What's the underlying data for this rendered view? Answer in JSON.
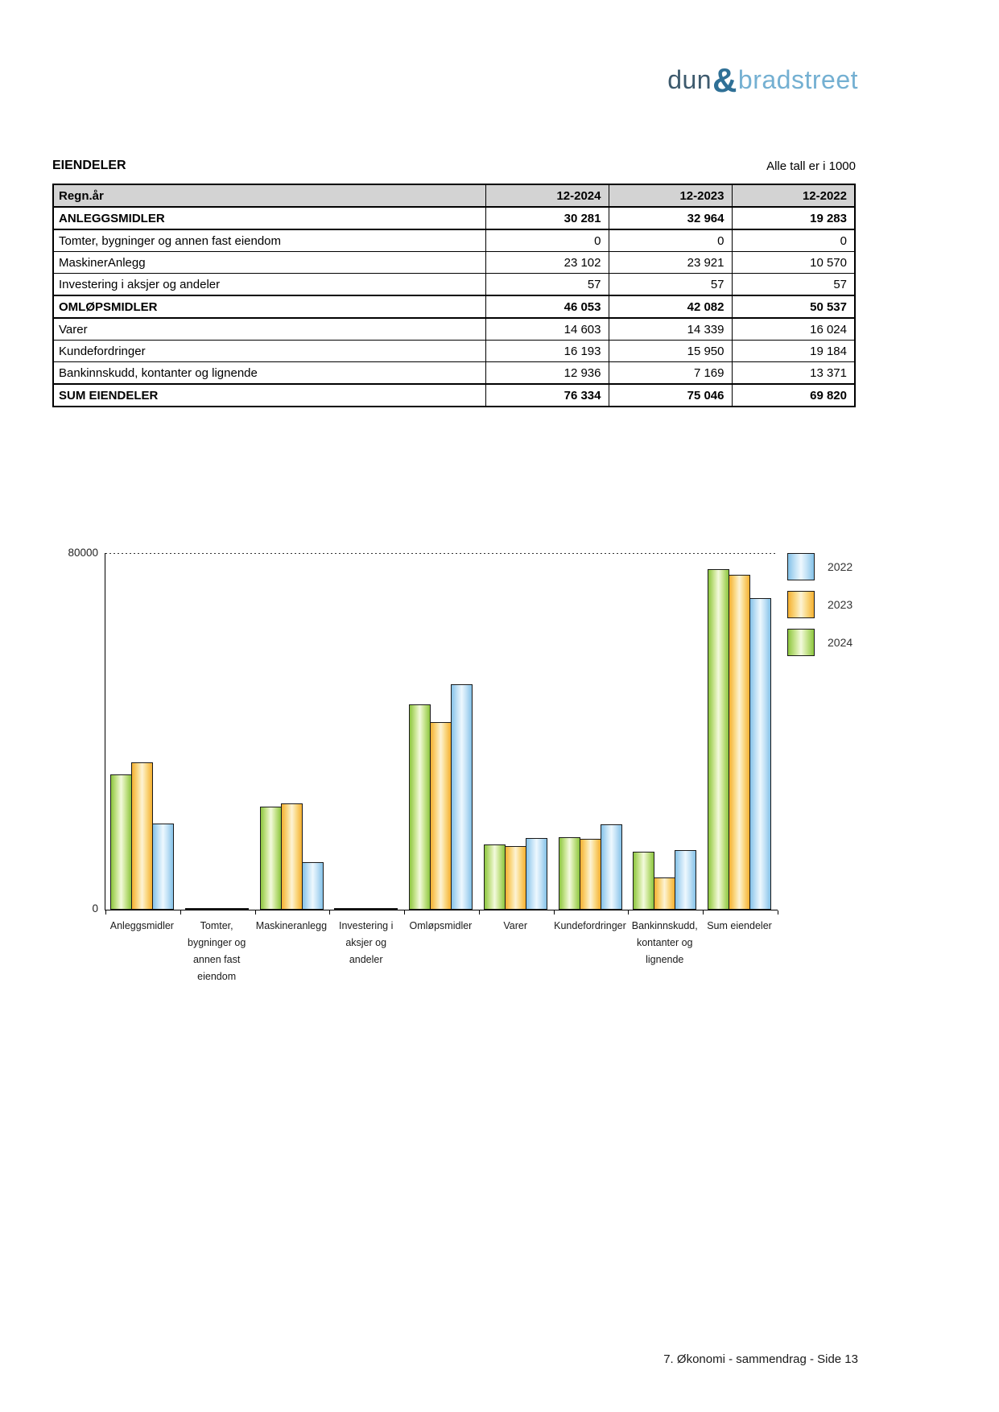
{
  "page": {
    "logo": {
      "part1": "dun",
      "amp": "&",
      "part2": "bradstreet"
    },
    "section_title": "EIENDELER",
    "units_note": "Alle tall er i 1000",
    "footer": "7. Økonomi - sammendrag - Side 13"
  },
  "table": {
    "columns": [
      "Regn.år",
      "12-2024",
      "12-2023",
      "12-2022"
    ],
    "rows": [
      {
        "label": "ANLEGGSMIDLER",
        "bold": true,
        "values": [
          "30 281",
          "32 964",
          "19 283"
        ]
      },
      {
        "label": "Tomter, bygninger og annen fast eiendom",
        "bold": false,
        "values": [
          "0",
          "0",
          "0"
        ]
      },
      {
        "label": "MaskinerAnlegg",
        "bold": false,
        "values": [
          "23 102",
          "23 921",
          "10 570"
        ]
      },
      {
        "label": "Investering i aksjer og andeler",
        "bold": false,
        "values": [
          "57",
          "57",
          "57"
        ]
      },
      {
        "label": "OMLØPSMIDLER",
        "bold": true,
        "values": [
          "46 053",
          "42 082",
          "50 537"
        ]
      },
      {
        "label": "Varer",
        "bold": false,
        "values": [
          "14 603",
          "14 339",
          "16 024"
        ]
      },
      {
        "label": "Kundefordringer",
        "bold": false,
        "values": [
          "16 193",
          "15 950",
          "19 184"
        ]
      },
      {
        "label": "Bankinnskudd, kontanter og lignende",
        "bold": false,
        "values": [
          "12 936",
          "7 169",
          "13 371"
        ]
      },
      {
        "label": "SUM EIENDELER",
        "bold": true,
        "values": [
          "76 334",
          "75 046",
          "69 820"
        ]
      }
    ]
  },
  "chart_data": {
    "type": "bar",
    "categories": [
      "Anleggsmidler",
      "Tomter, bygninger og annen fast eiendom",
      "Maskineranlegg",
      "Investering i aksjer og andeler",
      "Omløpsmidler",
      "Varer",
      "Kundefordringer",
      "Bankinnskudd, kontanter og lignende",
      "Sum eiendeler"
    ],
    "series": [
      {
        "name": "2024",
        "values": [
          30281,
          0,
          23102,
          57,
          46053,
          14603,
          16193,
          12936,
          76334
        ],
        "color_edge": "#8dc63f",
        "color_mid": "#c9e592",
        "color_center": "#f3fadd"
      },
      {
        "name": "2023",
        "values": [
          32964,
          0,
          23921,
          57,
          42082,
          14339,
          15950,
          7169,
          75046
        ],
        "color_edge": "#f5b031",
        "color_mid": "#fad985",
        "color_center": "#fdf3d5"
      },
      {
        "name": "2022",
        "values": [
          19283,
          0,
          10570,
          57,
          50537,
          16024,
          19184,
          13371,
          69820
        ],
        "color_edge": "#85c2e8",
        "color_mid": "#c3e2f6",
        "color_center": "#eef8fe"
      }
    ],
    "bar_order": [
      "2024",
      "2023",
      "2022"
    ],
    "legend_order": [
      "2022",
      "2023",
      "2024"
    ],
    "legend_position": "right",
    "bar_border_color": "#1a1a1a",
    "title": "",
    "xlabel": "",
    "ylabel": "",
    "ylim": [
      0,
      80000
    ],
    "ytick_top_label": "80000",
    "ytick_bottom_label": "0",
    "top_gridline_dashed": true
  }
}
